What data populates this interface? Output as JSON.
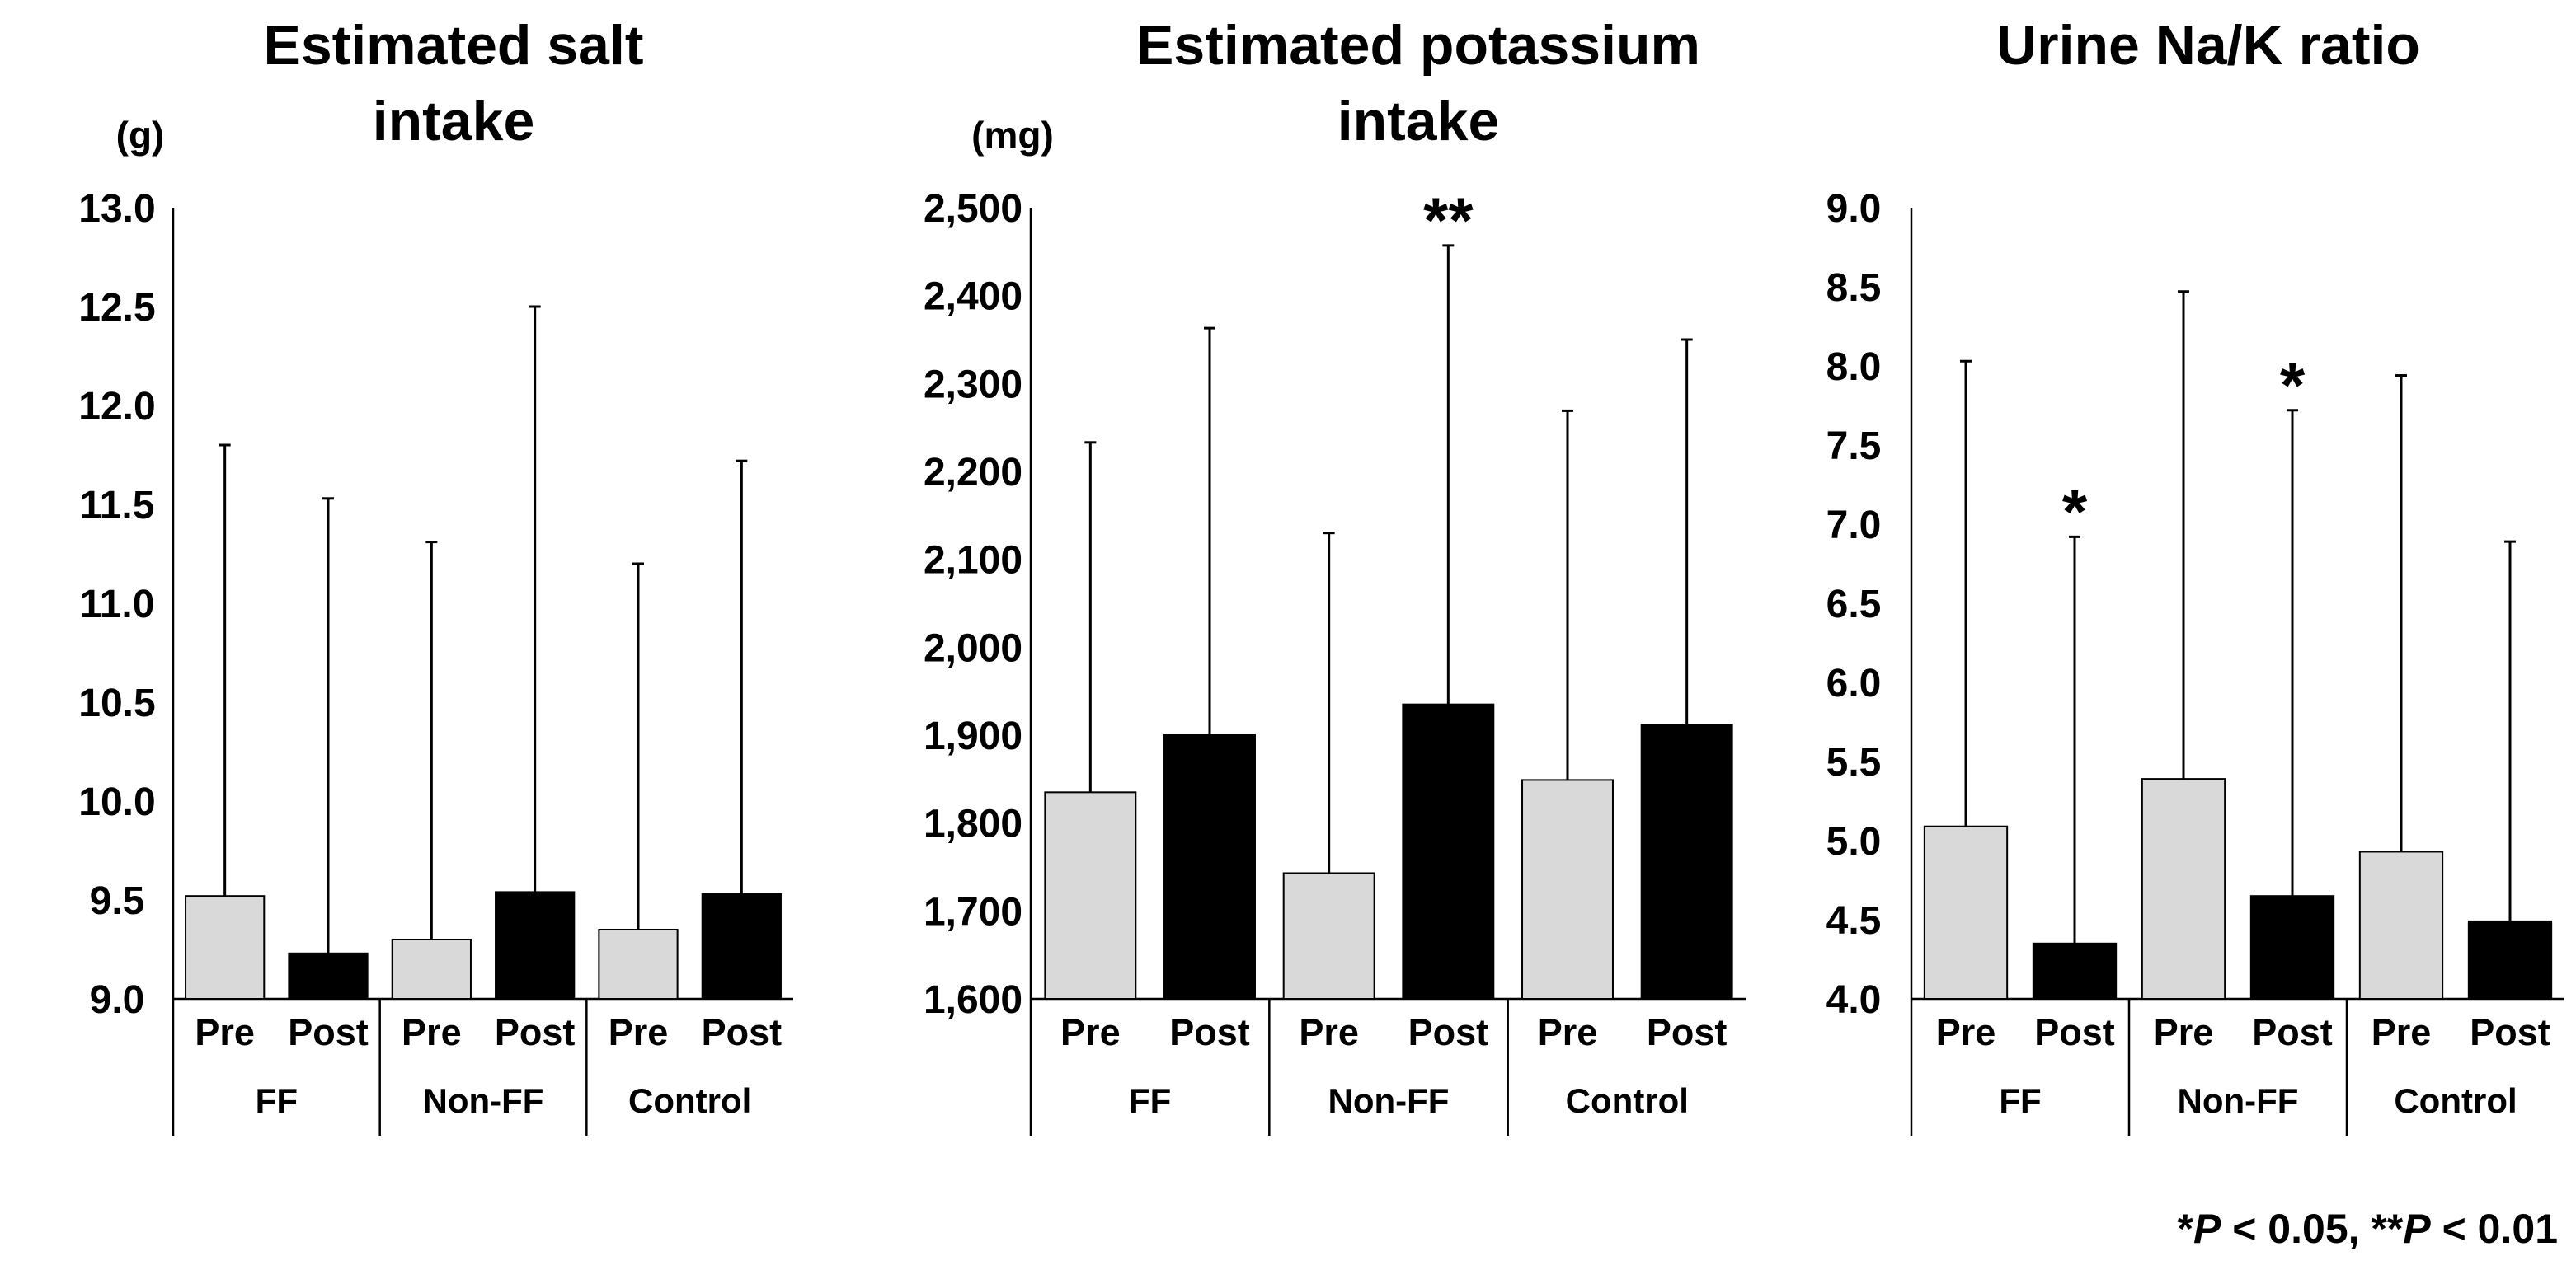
{
  "colors": {
    "pre_fill": "#d9d9d9",
    "post_fill": "#000000",
    "axis": "#000000"
  },
  "footnote": {
    "sym1": "*",
    "p1": "P",
    "rest1": " < 0.05, ",
    "sym2": "**",
    "p2": "P",
    "rest2": " < 0.01"
  },
  "chart_data": [
    {
      "type": "bar",
      "title": [
        "Estimated salt",
        "intake"
      ],
      "ylabel": "(g)",
      "ylim": [
        9.0,
        13.0
      ],
      "yticks": [
        9.0,
        9.5,
        10.0,
        10.5,
        11.0,
        11.5,
        12.0,
        12.5,
        13.0
      ],
      "tick_labels": [
        "9.0",
        "9.5",
        "10.0",
        "10.5",
        "11.0",
        "11.5",
        "12.0",
        "12.5",
        "13.0"
      ],
      "groups": [
        "FF",
        "Non-FF",
        "Control"
      ],
      "categories": [
        "Pre",
        "Post"
      ],
      "series": [
        {
          "group": "FF",
          "name": "Pre",
          "value": 9.52,
          "error_top": 11.8,
          "sig": ""
        },
        {
          "group": "FF",
          "name": "Post",
          "value": 9.23,
          "error_top": 11.53,
          "sig": ""
        },
        {
          "group": "Non-FF",
          "name": "Pre",
          "value": 9.3,
          "error_top": 11.31,
          "sig": ""
        },
        {
          "group": "Non-FF",
          "name": "Post",
          "value": 9.54,
          "error_top": 12.5,
          "sig": ""
        },
        {
          "group": "Control",
          "name": "Pre",
          "value": 9.35,
          "error_top": 11.2,
          "sig": ""
        },
        {
          "group": "Control",
          "name": "Post",
          "value": 9.53,
          "error_top": 11.72,
          "sig": ""
        }
      ]
    },
    {
      "type": "bar",
      "title": [
        "Estimated potassium",
        "intake"
      ],
      "ylabel": "(mg)",
      "ylim": [
        1600,
        2500
      ],
      "yticks": [
        1600,
        1700,
        1800,
        1900,
        2000,
        2100,
        2200,
        2300,
        2400,
        2500
      ],
      "tick_labels": [
        "1,600",
        "1,700",
        "1,800",
        "1,900",
        "2,000",
        "2,100",
        "2,200",
        "2,300",
        "2,400",
        "2,500"
      ],
      "groups": [
        "FF",
        "Non-FF",
        "Control"
      ],
      "categories": [
        "Pre",
        "Post"
      ],
      "series": [
        {
          "group": "FF",
          "name": "Pre",
          "value": 1835,
          "error_top": 2233,
          "sig": ""
        },
        {
          "group": "FF",
          "name": "Post",
          "value": 1900,
          "error_top": 2363,
          "sig": ""
        },
        {
          "group": "Non-FF",
          "name": "Pre",
          "value": 1743,
          "error_top": 2130,
          "sig": ""
        },
        {
          "group": "Non-FF",
          "name": "Post",
          "value": 1935,
          "error_top": 2457,
          "sig": "**"
        },
        {
          "group": "Control",
          "name": "Pre",
          "value": 1849,
          "error_top": 2269,
          "sig": ""
        },
        {
          "group": "Control",
          "name": "Post",
          "value": 1912,
          "error_top": 2350,
          "sig": ""
        }
      ]
    },
    {
      "type": "bar",
      "title": [
        "Urine Na/K ratio"
      ],
      "ylabel": "",
      "ylim": [
        4.0,
        9.0
      ],
      "yticks": [
        4.0,
        4.5,
        5.0,
        5.5,
        6.0,
        6.5,
        7.0,
        7.5,
        8.0,
        8.5,
        9.0
      ],
      "tick_labels": [
        "4.0",
        "4.5",
        "5.0",
        "5.5",
        "6.0",
        "6.5",
        "7.0",
        "7.5",
        "8.0",
        "8.5",
        "9.0"
      ],
      "groups": [
        "FF",
        "Non-FF",
        "Control"
      ],
      "categories": [
        "Pre",
        "Post"
      ],
      "series": [
        {
          "group": "FF",
          "name": "Pre",
          "value": 5.09,
          "error_top": 8.03,
          "sig": ""
        },
        {
          "group": "FF",
          "name": "Post",
          "value": 4.35,
          "error_top": 6.92,
          "sig": "*"
        },
        {
          "group": "Non-FF",
          "name": "Pre",
          "value": 5.39,
          "error_top": 8.47,
          "sig": ""
        },
        {
          "group": "Non-FF",
          "name": "Post",
          "value": 4.65,
          "error_top": 7.72,
          "sig": "*"
        },
        {
          "group": "Control",
          "name": "Pre",
          "value": 4.93,
          "error_top": 7.94,
          "sig": ""
        },
        {
          "group": "Control",
          "name": "Post",
          "value": 4.49,
          "error_top": 6.89,
          "sig": ""
        }
      ]
    }
  ]
}
